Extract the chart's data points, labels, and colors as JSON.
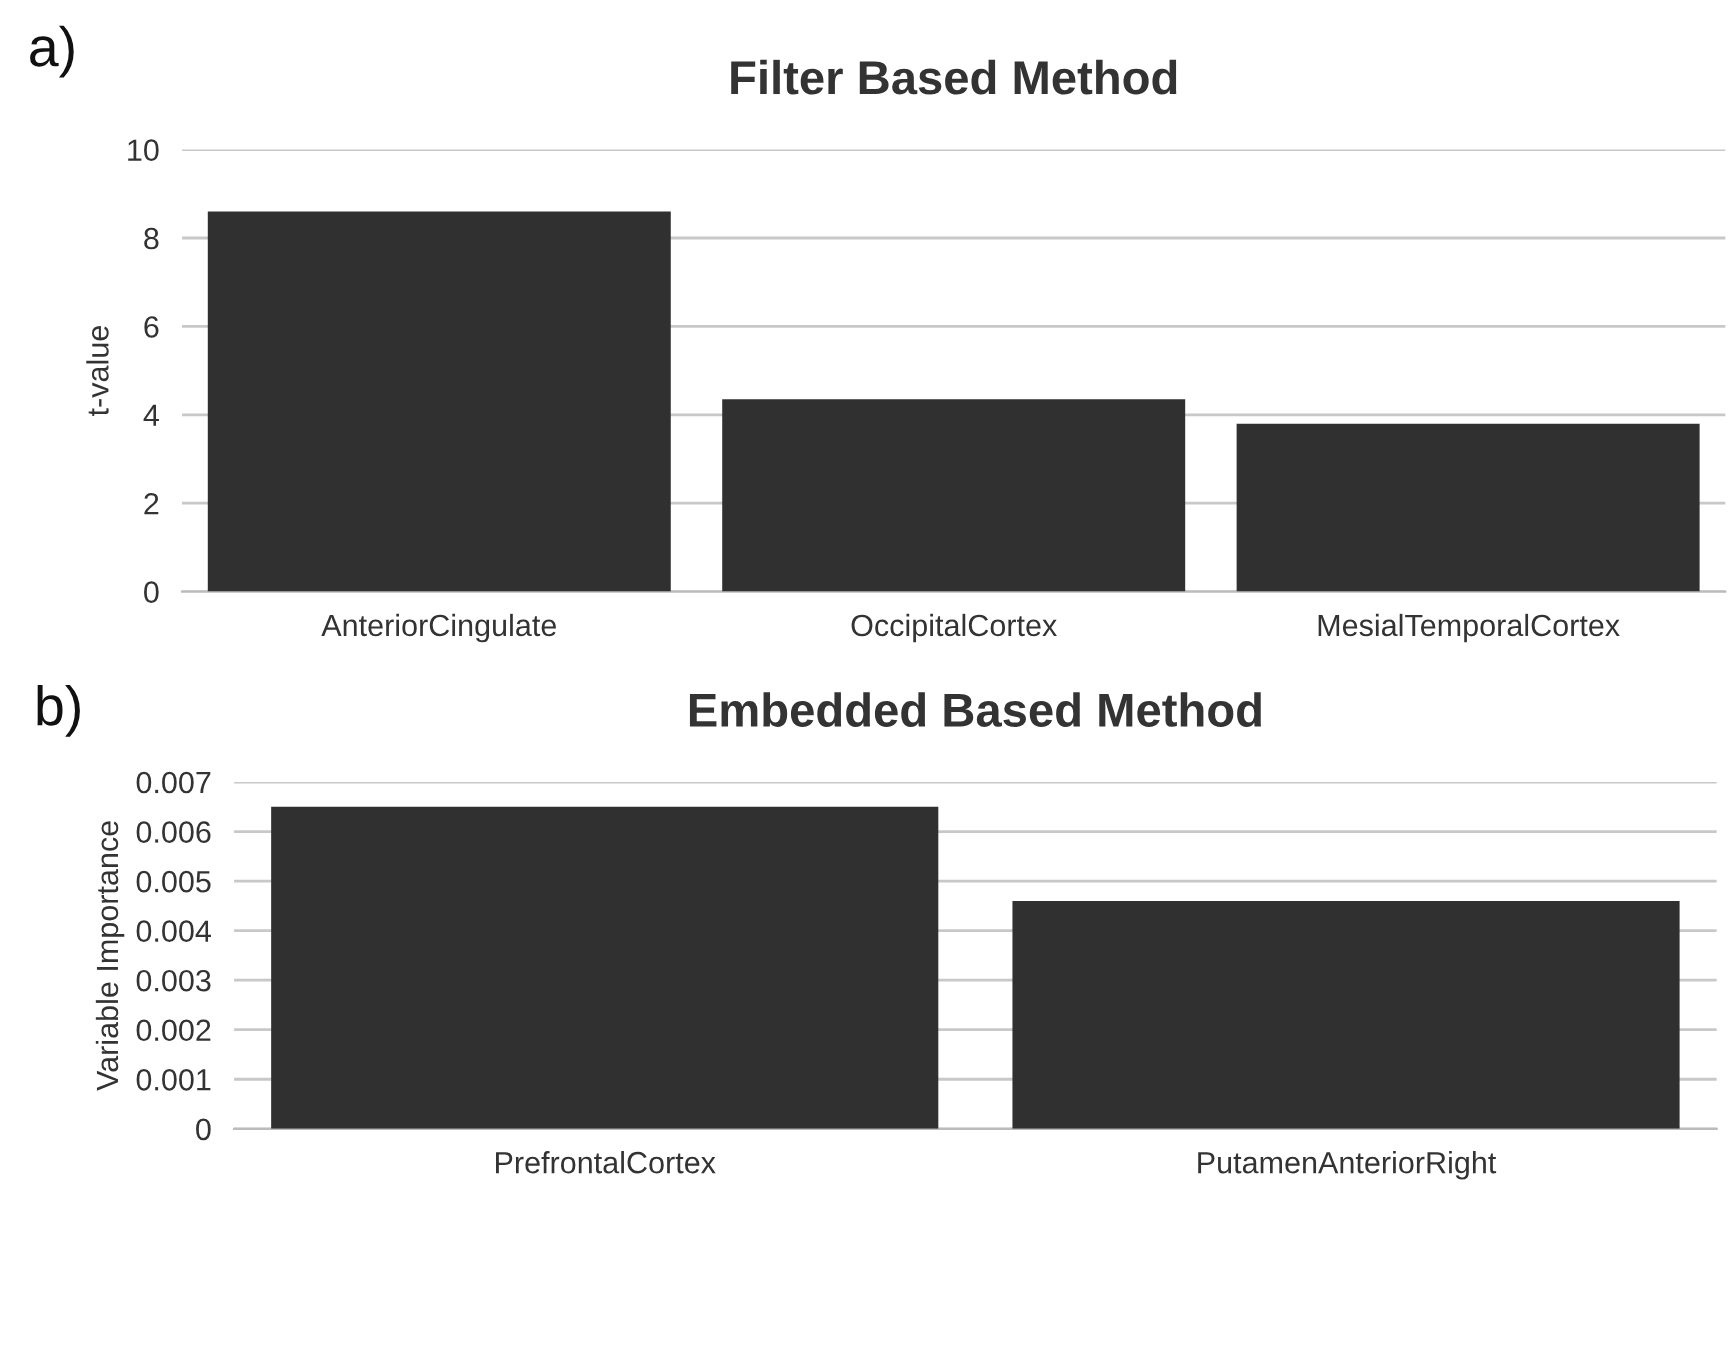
{
  "chart_data": [
    {
      "type": "bar",
      "title": "Filter Based Method",
      "ylabel": "t-value",
      "annotations": [
        "a)"
      ],
      "categories": [
        "AnteriorCingulate",
        "OccipitalCortex",
        "MesialTemporalCortex"
      ],
      "values": [
        8.6,
        4.35,
        3.8
      ],
      "color": "#303030",
      "ylim": [
        0,
        10
      ],
      "yticks": [
        0,
        2,
        4,
        6,
        8,
        10
      ],
      "grid": "y"
    },
    {
      "type": "bar",
      "title": "Embedded Based Method",
      "ylabel": "Variable Importance",
      "annotations": [
        "b)"
      ],
      "categories": [
        "PrefrontalCortex",
        "PutamenAnteriorRight"
      ],
      "values": [
        0.0065,
        0.0046
      ],
      "color": "#303030",
      "ylim": [
        0,
        0.007
      ],
      "yticks": [
        0,
        0.001,
        0.002,
        0.003,
        0.004,
        0.005,
        0.006,
        0.007
      ],
      "grid": "y"
    }
  ]
}
